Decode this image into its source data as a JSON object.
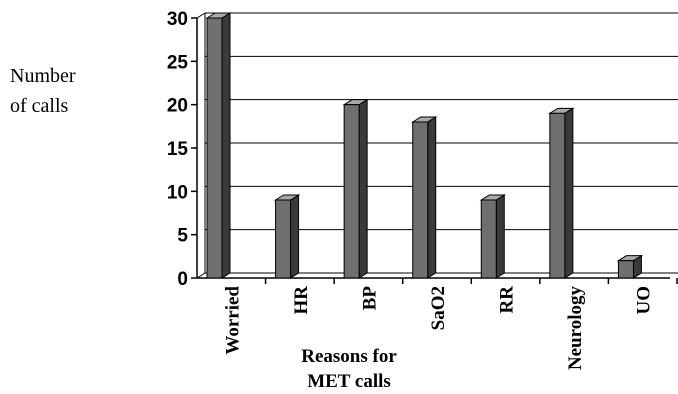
{
  "chart_data": {
    "type": "bar",
    "style": "3d-column",
    "categories": [
      "Worried",
      "HR",
      "BP",
      "SaO2",
      "RR",
      "Neurology",
      "UO"
    ],
    "values": [
      30,
      9,
      20,
      18,
      9,
      19,
      2
    ],
    "ylabel_lines": [
      "Number",
      "of calls"
    ],
    "xlabel_lines": [
      "Reasons for",
      "MET calls"
    ],
    "ylim": [
      0,
      30
    ],
    "yticks": [
      0,
      5,
      10,
      15,
      20,
      25,
      30
    ],
    "grid": true,
    "colors": {
      "bar_front": "#6f6f6f",
      "bar_side": "#3a3a3a",
      "bar_top": "#a8a8a8",
      "axis": "#000000",
      "grid": "#000000"
    }
  }
}
